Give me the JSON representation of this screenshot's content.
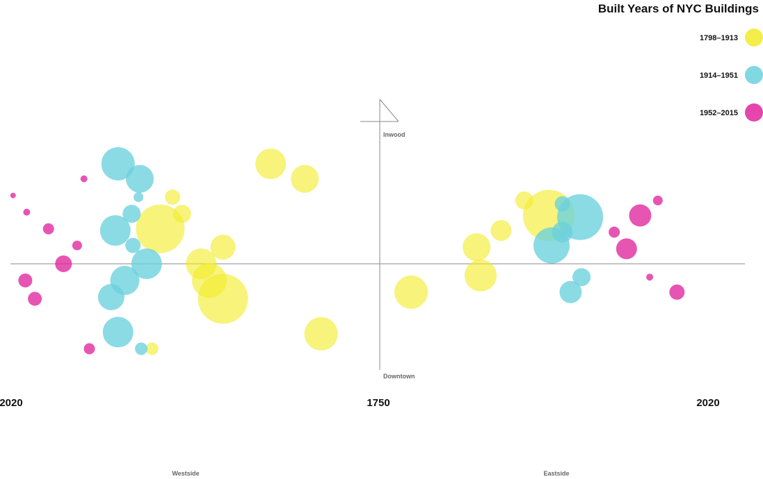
{
  "chart_data": {
    "type": "scatter",
    "title": "Built Years of NYC Buildings",
    "legend_placement": "top-right",
    "x_ticks": {
      "left": "2020",
      "center": "1750",
      "right": "2020"
    },
    "x_sides": {
      "left": "Westside",
      "right": "Eastside"
    },
    "y_ends": {
      "top": "Inwood",
      "bottom": "Downtown"
    },
    "grid": false,
    "series": [
      {
        "name": "1798–1913",
        "color": "#f2eb2a",
        "points": [
          {
            "x": -80,
            "y": 0.6,
            "size": 22
          },
          {
            "x": -55,
            "y": 0.51,
            "size": 20
          },
          {
            "x": -43,
            "y": -0.42,
            "size": 24
          },
          {
            "x": 23,
            "y": -0.17,
            "size": 24
          },
          {
            "x": 71,
            "y": 0.1,
            "size": 20
          },
          {
            "x": 74,
            "y": -0.07,
            "size": 23
          },
          {
            "x": 89,
            "y": 0.2,
            "size": 15
          },
          {
            "x": 106,
            "y": 0.38,
            "size": 13
          },
          {
            "x": 124,
            "y": 0.29,
            "size": 37
          },
          {
            "x": -131,
            "y": 0.0,
            "size": 22
          },
          {
            "x": -125,
            "y": -0.1,
            "size": 25
          },
          {
            "x": -115,
            "y": 0.1,
            "size": 18
          },
          {
            "x": -161,
            "y": 0.21,
            "size": 35
          },
          {
            "x": -152,
            "y": 0.4,
            "size": 11
          },
          {
            "x": -145,
            "y": 0.3,
            "size": 13
          },
          {
            "x": -115,
            "y": -0.21,
            "size": 36
          },
          {
            "x": -167,
            "y": -0.51,
            "size": 9
          }
        ]
      },
      {
        "name": "1914–1951",
        "color": "#6ad1de",
        "points": [
          {
            "x": -192,
            "y": 0.6,
            "size": 24
          },
          {
            "x": -176,
            "y": 0.51,
            "size": 20
          },
          {
            "x": -177,
            "y": 0.4,
            "size": 7
          },
          {
            "x": -182,
            "y": 0.3,
            "size": 13
          },
          {
            "x": -194,
            "y": 0.2,
            "size": 22
          },
          {
            "x": -181,
            "y": 0.11,
            "size": 11
          },
          {
            "x": -171,
            "y": 0.0,
            "size": 22
          },
          {
            "x": -187,
            "y": -0.1,
            "size": 21
          },
          {
            "x": -197,
            "y": -0.2,
            "size": 19
          },
          {
            "x": -192,
            "y": -0.41,
            "size": 22
          },
          {
            "x": -175,
            "y": -0.51,
            "size": 9
          },
          {
            "x": 126,
            "y": 0.11,
            "size": 26
          },
          {
            "x": 134,
            "y": 0.19,
            "size": 15
          },
          {
            "x": 134,
            "y": 0.36,
            "size": 11
          },
          {
            "x": 147,
            "y": 0.28,
            "size": 33
          },
          {
            "x": 148,
            "y": -0.08,
            "size": 13
          },
          {
            "x": 140,
            "y": -0.17,
            "size": 16
          }
        ]
      },
      {
        "name": "1952–2015",
        "color": "#e0259d",
        "points": [
          {
            "x": -269,
            "y": 0.41,
            "size": 4
          },
          {
            "x": -259,
            "y": 0.31,
            "size": 5
          },
          {
            "x": -243,
            "y": 0.21,
            "size": 8
          },
          {
            "x": -232,
            "y": 0.0,
            "size": 12
          },
          {
            "x": -260,
            "y": -0.1,
            "size": 10
          },
          {
            "x": -253,
            "y": -0.21,
            "size": 10
          },
          {
            "x": -222,
            "y": 0.11,
            "size": 7
          },
          {
            "x": -217,
            "y": 0.51,
            "size": 5
          },
          {
            "x": -213,
            "y": -0.51,
            "size": 8
          },
          {
            "x": 172,
            "y": 0.19,
            "size": 8
          },
          {
            "x": 181,
            "y": 0.09,
            "size": 15
          },
          {
            "x": 191,
            "y": 0.29,
            "size": 16
          },
          {
            "x": 204,
            "y": 0.38,
            "size": 7
          },
          {
            "x": 198,
            "y": -0.08,
            "size": 5
          },
          {
            "x": 218,
            "y": -0.17,
            "size": 11
          }
        ]
      }
    ]
  }
}
